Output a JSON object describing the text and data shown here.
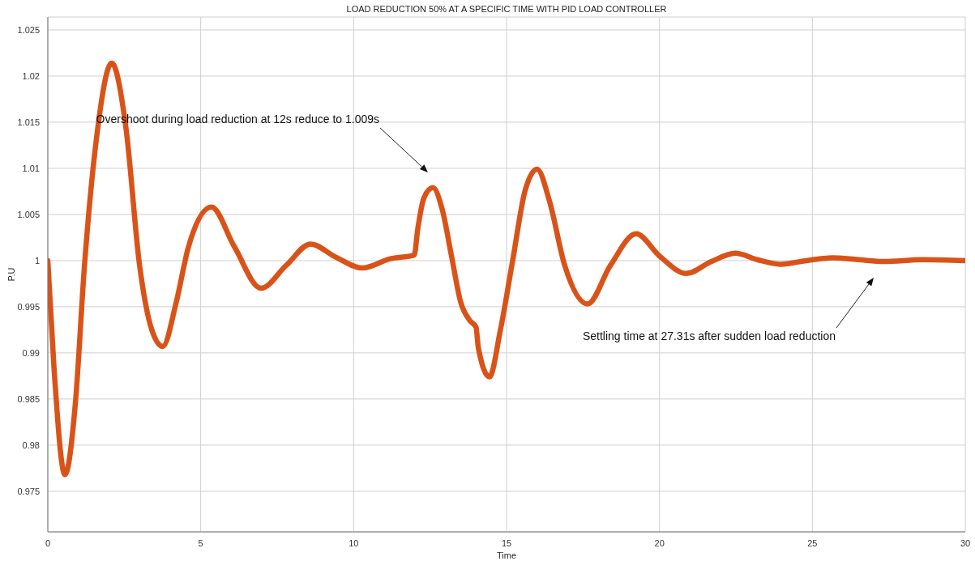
{
  "chart_data": {
    "type": "line",
    "title": "LOAD REDUCTION 50% AT A SPECIFIC TIME WITH PID LOAD CONTROLLER",
    "xlabel": "Time",
    "ylabel": "P.U",
    "x": [
      0,
      0.2,
      0.56,
      0.9,
      1.2,
      1.6,
      2.09,
      2.55,
      3.0,
      3.4,
      3.76,
      4.2,
      4.6,
      5.35,
      6.1,
      6.97,
      7.8,
      8.59,
      9.4,
      10.28,
      11.2,
      11.98,
      12.1,
      12.3,
      12.59,
      12.9,
      13.2,
      13.5,
      13.8,
      14.0,
      14.08,
      14.44,
      14.8,
      15.2,
      15.6,
      16.0,
      16.4,
      16.9,
      17.65,
      18.4,
      19.24,
      20.0,
      20.88,
      21.7,
      22.48,
      23.2,
      23.96,
      24.8,
      25.66,
      26.5,
      27.33,
      28.6,
      30
    ],
    "series": [
      {
        "color": "#d95319",
        "values": [
          1.0,
          0.9885,
          0.9768,
          0.9845,
          0.9995,
          1.0135,
          1.0214,
          1.0145,
          0.9995,
          0.9925,
          0.9907,
          0.9955,
          1.0015,
          1.0058,
          1.0015,
          0.997,
          0.9995,
          1.0018,
          1.0004,
          0.9992,
          1.0002,
          1.0006,
          1.0035,
          1.0068,
          1.0079,
          1.0055,
          1.0005,
          0.9955,
          0.9935,
          0.9928,
          0.9905,
          0.9874,
          0.9925,
          1.0,
          1.0075,
          1.0099,
          1.0065,
          0.9995,
          0.9953,
          0.9995,
          1.0029,
          1.0005,
          0.9986,
          0.9999,
          1.0008,
          1.0001,
          0.9996,
          1.0,
          1.0003,
          1.0001,
          0.9999,
          1.0001,
          1.0
        ]
      }
    ],
    "xlim": [
      0,
      30
    ],
    "xticks": [
      0,
      5,
      10,
      15,
      20,
      25,
      30
    ],
    "ylim": [
      0.9706,
      1.0264
    ],
    "yticks": [
      0.975,
      0.98,
      0.985,
      0.99,
      0.995,
      1,
      1.005,
      1.01,
      1.015,
      1.02,
      1.025
    ],
    "grid": true,
    "marker": "none",
    "line_style": "solid",
    "annotations": [
      "Overshoot during load reduction at 12s reduce to 1.009s",
      "Settling time at 27.31s after sudden load reduction"
    ]
  }
}
